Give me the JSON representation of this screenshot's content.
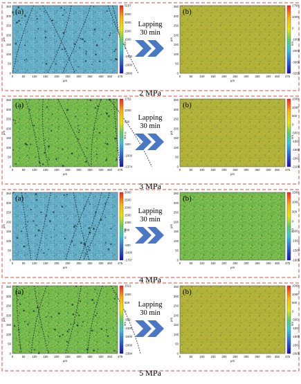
{
  "figure": {
    "arrow_text": [
      "Lapping",
      "30 min"
    ],
    "panel_labels": {
      "left": "(a)",
      "right": "(b)"
    },
    "axis_unit": "µm",
    "colorbar_unit": "nm",
    "x_ticks": [
      "0",
      "50",
      "100",
      "150",
      "200",
      "250",
      "300",
      "350",
      "400",
      "450",
      "475"
    ],
    "y_ticks": [
      "0",
      "50",
      "100",
      "150",
      "200",
      "250",
      "300",
      "350"
    ],
    "colors": {
      "dash_border": "#e0443a",
      "arrow": "#4a78c4",
      "blue_surface": "#66aec6",
      "green_surface": "#74b84c",
      "yellow_surface": "#b2b23a",
      "scratch": "#1b2a3a"
    },
    "rows": [
      {
        "pressure": "2 MPa",
        "left": {
          "surface": "blue",
          "colorbar": [
            "5197",
            "4000",
            "3000",
            "2000",
            "1000",
            "0",
            "-1000",
            "-2000",
            "-2890"
          ]
        },
        "right": {
          "surface": "yellow",
          "colorbar": [
            "1750",
            "1000",
            "0",
            "-1000",
            "-2000",
            "-3000",
            "-3255"
          ]
        }
      },
      {
        "pressure": "3 MPa",
        "left": {
          "surface": "green",
          "colorbar": [
            "1752",
            "1000",
            "500",
            "0",
            "-500",
            "-1000",
            "-1374"
          ]
        },
        "right": {
          "surface": "yellow",
          "colorbar": [
            "1500",
            "1000",
            "500",
            "0",
            "-500",
            "-1000",
            "-1500",
            "-2000",
            "-2106"
          ]
        }
      },
      {
        "pressure": "4 MPa",
        "left": {
          "surface": "blue",
          "colorbar": [
            "3000",
            "2500",
            "2000",
            "1500",
            "1000",
            "500",
            "0",
            "-500",
            "-1000",
            "-1707"
          ]
        },
        "right": {
          "surface": "green",
          "colorbar": [
            "1500",
            "1000",
            "500",
            "0",
            "-500",
            "-1000",
            "-1500",
            "-1905"
          ]
        }
      },
      {
        "pressure": "5 MPa",
        "left": {
          "surface": "green",
          "colorbar": [
            "1521",
            "1000",
            "500",
            "0",
            "-500",
            "-1000",
            "-1500",
            "-2000",
            "-2394"
          ]
        },
        "right": {
          "surface": "yellow",
          "colorbar": [
            "1500",
            "1000",
            "500",
            "0",
            "-500",
            "-1000",
            "-1500",
            "-2000",
            "-2605"
          ]
        }
      }
    ]
  }
}
